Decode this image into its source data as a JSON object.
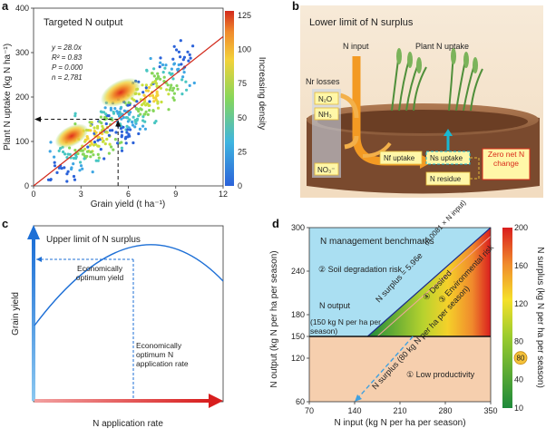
{
  "panels": {
    "a": {
      "label": "a",
      "title": "Targeted N output",
      "stats": {
        "eq": "y = 28.0x",
        "r2": "R² = 0.83",
        "p": "P = 0.000",
        "n": "n = 2,781"
      },
      "xlabel": "Grain yield (t ha⁻¹)",
      "ylabel": "Plant N uptake (kg N ha⁻¹)",
      "colorbar_label": "Increasing density",
      "colorbar_ticks": [
        "0",
        "25",
        "50",
        "75",
        "100",
        "125"
      ],
      "colors": {
        "low": "#1f5fd8",
        "mid": "#7ed957",
        "high": "#d8281a"
      }
    },
    "b": {
      "label": "b",
      "title": "Lower limit of N surplus",
      "n_input": "N input",
      "plant_uptake": "Plant N uptake",
      "nr_losses": "Nr losses",
      "n2o": "N₂O",
      "nh3": "NH₃",
      "no3": "NO₃⁻",
      "nf_uptake": "Nf uptake",
      "ns_uptake": "Ns uptake",
      "n_residue": "N residue",
      "zero_change": "Zero net N change"
    },
    "c": {
      "label": "c",
      "title": "Upper limit of N surplus",
      "opt_yield": "Economically optimum yield",
      "opt_rate": "Economically optimum N application rate",
      "ylabel": "Grain yield",
      "xlabel": "N application rate"
    },
    "d": {
      "label": "d",
      "title": "N management benchmarks",
      "soil_risk": "② Soil degradation risk",
      "n_output": "N output",
      "n_output_value": "(150 kg N per ha per season)",
      "surplus_eq": "N surplus = 5.96e",
      "surplus_exp": "(0.0081 × N input)",
      "desired": "④ Desired",
      "env_risk": "③ Environmental risk",
      "low_prod": "① Low productivity",
      "n_surplus_floor": "N surplus (80 kg N per ha per season)",
      "xlabel": "N input (kg N per ha per season)",
      "ylabel": "N output (kg N per ha per season)",
      "colorbar_label": "N surplus (kg N per ha per season)",
      "colorbar_ticks": [
        "10",
        "40",
        "80",
        "120",
        "160",
        "200"
      ],
      "colorbar_marker": "80",
      "colors": {
        "blue_zone": "#aadff2",
        "peach_zone": "#f6cfae",
        "gradient_low": "#1e8a3a",
        "gradient_mid": "#f5e02a",
        "gradient_high": "#d91e1e"
      }
    }
  },
  "chart_data": [
    {
      "type": "scatter",
      "title": "Targeted N output",
      "xlabel": "Grain yield (t ha⁻¹)",
      "ylabel": "Plant N uptake (kg N ha⁻¹)",
      "xlim": [
        0,
        12
      ],
      "ylim": [
        0,
        400
      ],
      "x_ticks": [
        0,
        3,
        6,
        9,
        12
      ],
      "y_ticks": [
        0,
        100,
        200,
        300,
        400
      ],
      "fit_line": {
        "slope": 28.0,
        "intercept": 0
      },
      "reference": {
        "x": 5.35,
        "y": 150
      },
      "density_centers": [
        {
          "x": 3.8,
          "y": 110
        },
        {
          "x": 7.4,
          "y": 205
        }
      ]
    },
    {
      "type": "line",
      "title": "N management benchmarks",
      "xlabel": "N input (kg N per ha per season)",
      "ylabel": "N output (kg N per ha per season)",
      "xlim": [
        70,
        350
      ],
      "ylim": [
        60,
        300
      ],
      "x_ticks": [
        70,
        140,
        210,
        280,
        350
      ],
      "y_ticks": [
        60,
        120,
        150,
        180,
        240,
        300
      ],
      "series": [
        {
          "values_x": [
            160,
            350
          ],
          "values_y": [
            150,
            300
          ]
        },
        {
          "values_x": [
            175,
            350
          ],
          "values_y": [
            150,
            288
          ]
        },
        {
          "values_x": [
            230,
            140
          ],
          "values_y": [
            150,
            60
          ]
        }
      ]
    }
  ]
}
